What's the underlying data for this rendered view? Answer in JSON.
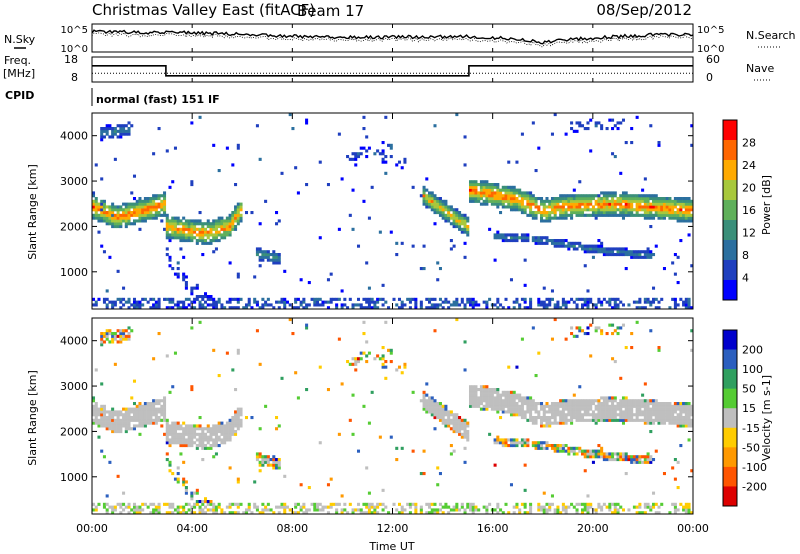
{
  "header": {
    "title": "Christmas Valley East (fitACF)",
    "beam": "Beam 17",
    "date": "08/Sep/2012"
  },
  "noise_panel": {
    "left_label": "N.Sky",
    "left_ticks": [
      "10^5",
      "10^0"
    ],
    "right_label": "N.Search",
    "right_ticks": [
      "10^5",
      "10^0"
    ]
  },
  "freq_panel": {
    "left_label_1": "Freq.",
    "left_label_2": "[MHz]",
    "left_ticks": [
      "18",
      "8"
    ],
    "right_label": "Nave",
    "right_ticks": [
      "60",
      "0"
    ],
    "cpid_label": "CPID",
    "mode_text": "normal (fast) 151 IF"
  },
  "x_axis": {
    "label": "Time UT",
    "ticks": [
      "00:00",
      "04:00",
      "08:00",
      "12:00",
      "16:00",
      "20:00",
      "00:00"
    ]
  },
  "chart_data": [
    {
      "type": "line",
      "name_text": "N.Sky",
      "x_hours": [
        0,
        1,
        2,
        3,
        4,
        5,
        6,
        7,
        8,
        9,
        10,
        11,
        12,
        13,
        14,
        15,
        16,
        17,
        18,
        19,
        20,
        21,
        22,
        23,
        24
      ],
      "level_frac": [
        0.72,
        0.72,
        0.7,
        0.7,
        0.69,
        0.66,
        0.63,
        0.6,
        0.56,
        0.54,
        0.53,
        0.53,
        0.53,
        0.54,
        0.54,
        0.55,
        0.52,
        0.45,
        0.35,
        0.43,
        0.5,
        0.55,
        0.6,
        0.62,
        0.62
      ],
      "ylabel": "N.Sky"
    },
    {
      "type": "line",
      "name_text": "Freq. [MHz]",
      "x_hours": [
        0,
        2.95,
        2.95,
        15.05,
        15.05,
        24
      ],
      "freq_mhz": [
        14.5,
        14.5,
        10.5,
        10.5,
        14.5,
        14.5
      ],
      "nave": [
        21,
        21,
        21,
        21,
        21,
        21
      ],
      "ylim_freq": [
        8,
        18
      ],
      "ylim_nave": [
        0,
        60
      ]
    },
    {
      "type": "heatmap",
      "quantity": "Power",
      "ylabel": "Slant Range [km]",
      "colorbar_label": "Power [dB]",
      "colorbar_ticks": [
        4,
        8,
        12,
        16,
        20,
        24,
        28
      ],
      "clim": [
        0,
        32
      ],
      "ylim": [
        180,
        4500
      ],
      "yticks": [
        1000,
        2000,
        3000,
        4000
      ],
      "xlim": [
        0,
        24
      ],
      "colors": [
        "#0000ff",
        "#1f3fbf",
        "#2b6f9f",
        "#3a8f7a",
        "#5fb05a",
        "#a8c83c",
        "#ffaa00",
        "#ff6600",
        "#ff0000"
      ]
    },
    {
      "type": "heatmap",
      "quantity": "Velocity",
      "ylabel": "Slant Range [km]",
      "colorbar_label": "Velocity [m s-1]",
      "colorbar_ticks": [
        "200",
        "100",
        "50",
        "15",
        "-15",
        "-50",
        "-100",
        "-200"
      ],
      "clim": [
        -250,
        250
      ],
      "ylim": [
        180,
        4500
      ],
      "yticks": [
        1000,
        2000,
        3000,
        4000
      ],
      "xlim": [
        0,
        24
      ],
      "colors": [
        "#0000cc",
        "#2b5fbf",
        "#2f9f5f",
        "#55cc33",
        "#bfbfbf",
        "#ffcc00",
        "#ff9900",
        "#ff5500",
        "#dd0000"
      ]
    }
  ]
}
